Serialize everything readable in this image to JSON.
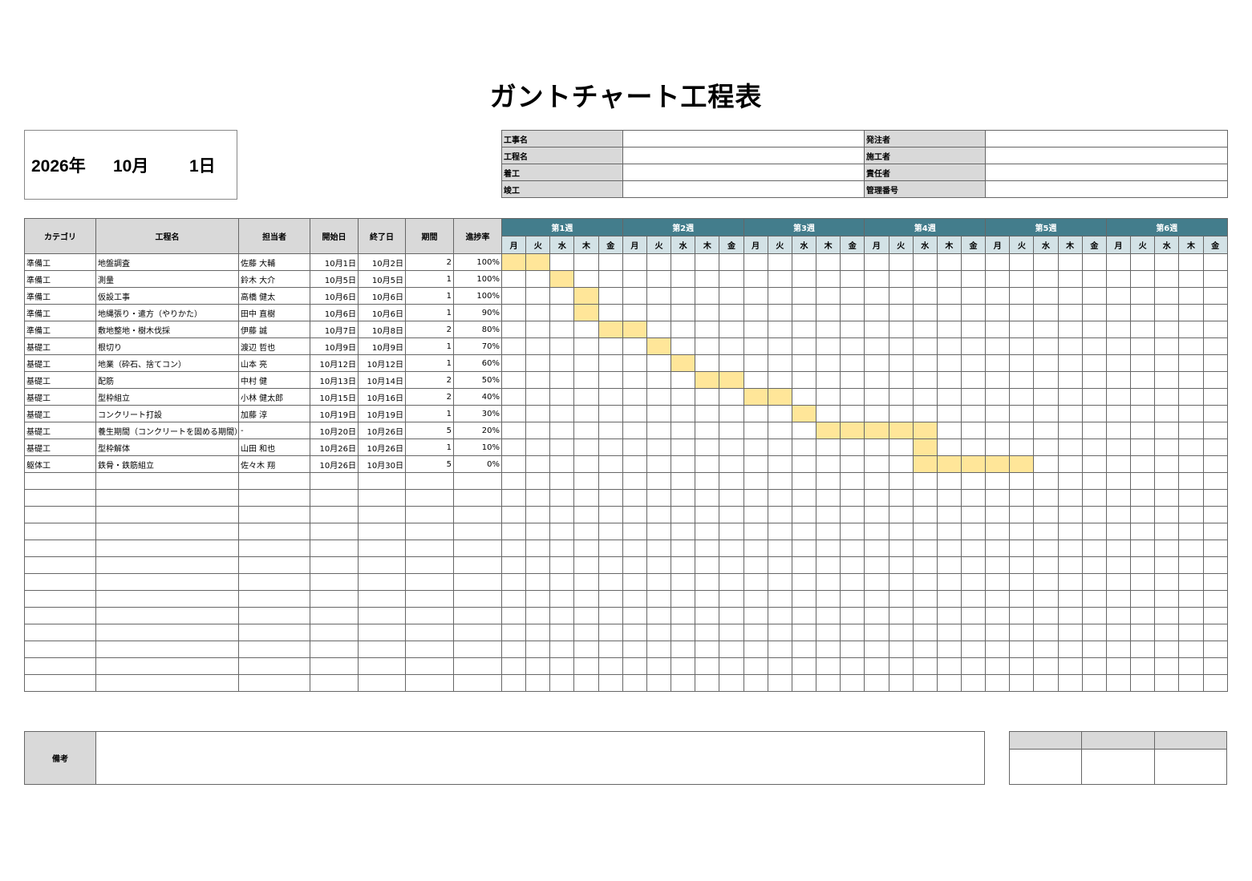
{
  "title": "ガントチャート工程表",
  "date": {
    "year": "2026年",
    "month": "10月",
    "day": "1日"
  },
  "info": {
    "left_labels": [
      "工事名",
      "工程名",
      "着工",
      "竣工"
    ],
    "right_labels": [
      "発注者",
      "施工者",
      "責任者",
      "管理番号"
    ]
  },
  "columns": [
    "カテゴリ",
    "工程名",
    "担当者",
    "開始日",
    "終了日",
    "期間",
    "進捗率"
  ],
  "weeks": [
    "第1週",
    "第2週",
    "第3週",
    "第4週",
    "第5週",
    "第6週"
  ],
  "weekdays": [
    "月",
    "火",
    "水",
    "木",
    "金"
  ],
  "colors": {
    "week_header": "#437d8c",
    "day_header": "#d3e2e6",
    "label_gray": "#d9d9d9",
    "bar": "#ffe699"
  },
  "tasks": [
    {
      "category": "準備工",
      "name": "地盤調査",
      "person": "佐藤 大輔",
      "start": "10月1日",
      "end": "10月2日",
      "days": "2",
      "progress": "100%",
      "bar_start": 0,
      "bar_len": 2
    },
    {
      "category": "準備工",
      "name": "測量",
      "person": "鈴木 大介",
      "start": "10月5日",
      "end": "10月5日",
      "days": "1",
      "progress": "100%",
      "bar_start": 2,
      "bar_len": 1
    },
    {
      "category": "準備工",
      "name": "仮設工事",
      "person": "高橋 健太",
      "start": "10月6日",
      "end": "10月6日",
      "days": "1",
      "progress": "100%",
      "bar_start": 3,
      "bar_len": 1
    },
    {
      "category": "準備工",
      "name": "地縄張り・遣方（やりかた）",
      "person": "田中 直樹",
      "start": "10月6日",
      "end": "10月6日",
      "days": "1",
      "progress": "90%",
      "bar_start": 3,
      "bar_len": 1
    },
    {
      "category": "準備工",
      "name": "敷地整地・樹木伐採",
      "person": "伊藤 誠",
      "start": "10月7日",
      "end": "10月8日",
      "days": "2",
      "progress": "80%",
      "bar_start": 4,
      "bar_len": 2
    },
    {
      "category": "基礎工",
      "name": "根切り",
      "person": "渡辺 哲也",
      "start": "10月9日",
      "end": "10月9日",
      "days": "1",
      "progress": "70%",
      "bar_start": 6,
      "bar_len": 1
    },
    {
      "category": "基礎工",
      "name": "地業（砕石、捨てコン）",
      "person": "山本 亮",
      "start": "10月12日",
      "end": "10月12日",
      "days": "1",
      "progress": "60%",
      "bar_start": 7,
      "bar_len": 1
    },
    {
      "category": "基礎工",
      "name": "配筋",
      "person": "中村 健",
      "start": "10月13日",
      "end": "10月14日",
      "days": "2",
      "progress": "50%",
      "bar_start": 8,
      "bar_len": 2
    },
    {
      "category": "基礎工",
      "name": "型枠組立",
      "person": "小林 健太郎",
      "start": "10月15日",
      "end": "10月16日",
      "days": "2",
      "progress": "40%",
      "bar_start": 10,
      "bar_len": 2
    },
    {
      "category": "基礎工",
      "name": "コンクリート打設",
      "person": "加藤 淳",
      "start": "10月19日",
      "end": "10月19日",
      "days": "1",
      "progress": "30%",
      "bar_start": 12,
      "bar_len": 1
    },
    {
      "category": "基礎工",
      "name": "養生期間（コンクリートを固める期間）",
      "person": "-",
      "start": "10月20日",
      "end": "10月26日",
      "days": "5",
      "progress": "20%",
      "bar_start": 13,
      "bar_len": 5
    },
    {
      "category": "基礎工",
      "name": "型枠解体",
      "person": "山田 和也",
      "start": "10月26日",
      "end": "10月26日",
      "days": "1",
      "progress": "10%",
      "bar_start": 17,
      "bar_len": 1
    },
    {
      "category": "躯体工",
      "name": "鉄骨・鉄筋組立",
      "person": "佐々木 翔",
      "start": "10月26日",
      "end": "10月30日",
      "days": "5",
      "progress": "0%",
      "bar_start": 17,
      "bar_len": 5
    }
  ],
  "notes": {
    "label": "備考"
  }
}
